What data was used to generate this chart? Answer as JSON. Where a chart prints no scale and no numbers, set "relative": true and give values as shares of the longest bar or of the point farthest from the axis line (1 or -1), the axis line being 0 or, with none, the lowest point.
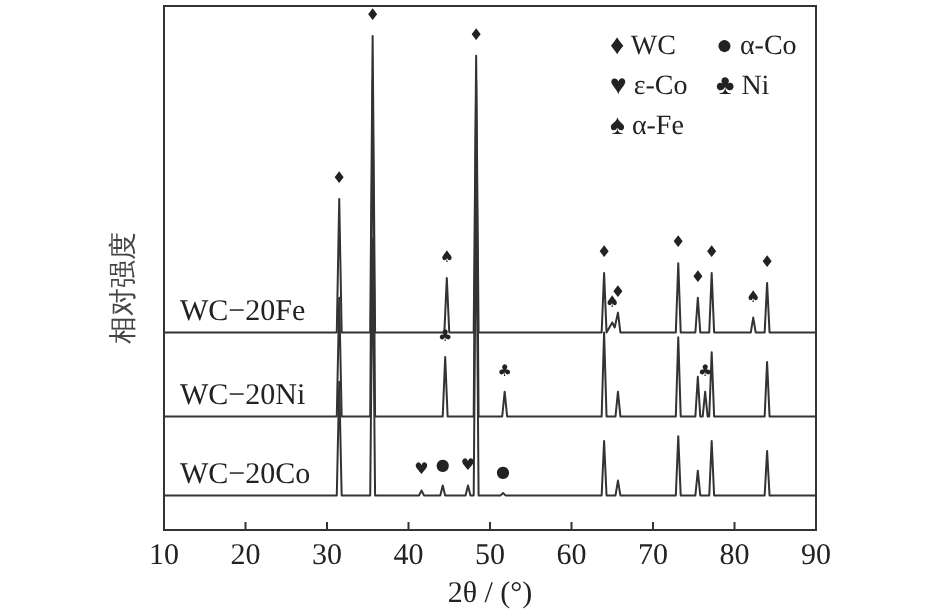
{
  "chart_data": {
    "type": "line",
    "relative": true,
    "xlabel": "2θ / (°)",
    "ylabel": "相对强度",
    "xlim": [
      10,
      90
    ],
    "xticks": [
      10,
      20,
      30,
      40,
      50,
      60,
      70,
      80,
      90
    ],
    "grid": false,
    "line_style": "solid",
    "series": [
      {
        "name": "WC−20Fe",
        "color": "#333333",
        "x": [
          10,
          31.2,
          31.5,
          31.8,
          35.3,
          35.6,
          35.9,
          44.4,
          44.7,
          45,
          48,
          48.3,
          48.6,
          63.7,
          64,
          64.3,
          65,
          65.3,
          65.7,
          66,
          72.8,
          73.1,
          73.4,
          75.2,
          75.5,
          75.8,
          76.9,
          77.2,
          77.5,
          82,
          82.3,
          82.6,
          83.7,
          84,
          84.3,
          90
        ],
        "values": [
          0.4,
          0.4,
          0.67,
          0.4,
          0.4,
          1,
          0.4,
          0.4,
          0.51,
          0.4,
          0.4,
          0.96,
          0.4,
          0.4,
          0.52,
          0.4,
          0.42,
          0.41,
          0.44,
          0.4,
          0.4,
          0.54,
          0.4,
          0.4,
          0.47,
          0.4,
          0.4,
          0.52,
          0.4,
          0.4,
          0.43,
          0.4,
          0.4,
          0.5,
          0.4,
          0.4
        ]
      },
      {
        "name": "WC−20Ni",
        "color": "#333333",
        "x": [
          10,
          31.2,
          31.5,
          31.8,
          35.3,
          35.6,
          35.9,
          44.2,
          44.5,
          44.8,
          48,
          48.3,
          48.6,
          51.5,
          51.8,
          52.1,
          63.7,
          64,
          64.3,
          65.4,
          65.7,
          66,
          72.8,
          73.1,
          73.4,
          75.2,
          75.5,
          75.8,
          76.1,
          76.4,
          76.7,
          76.9,
          77.2,
          77.5,
          83.7,
          84,
          84.3,
          90
        ],
        "values": [
          0.23,
          0.23,
          0.47,
          0.23,
          0.23,
          0.91,
          0.23,
          0.23,
          0.35,
          0.23,
          0.23,
          0.91,
          0.23,
          0.23,
          0.28,
          0.23,
          0.23,
          0.4,
          0.23,
          0.23,
          0.28,
          0.23,
          0.23,
          0.39,
          0.23,
          0.23,
          0.31,
          0.23,
          0.23,
          0.28,
          0.23,
          0.23,
          0.36,
          0.23,
          0.23,
          0.34,
          0.23,
          0.23
        ]
      },
      {
        "name": "WC−20Co",
        "color": "#333333",
        "x": [
          10,
          31.2,
          31.5,
          31.8,
          35.3,
          35.6,
          35.9,
          41.3,
          41.6,
          41.9,
          43.9,
          44.2,
          44.5,
          47,
          47.3,
          47.6,
          48,
          48.3,
          48.6,
          51.3,
          51.6,
          51.9,
          63.7,
          64,
          64.3,
          65.4,
          65.7,
          66,
          72.8,
          73.1,
          73.4,
          75.2,
          75.5,
          75.8,
          76.9,
          77.2,
          77.5,
          83.7,
          84,
          84.3,
          90
        ],
        "values": [
          0.07,
          0.07,
          0.3,
          0.07,
          0.07,
          0.59,
          0.07,
          0.07,
          0.08,
          0.07,
          0.07,
          0.09,
          0.07,
          0.07,
          0.09,
          0.07,
          0.07,
          0.71,
          0.07,
          0.07,
          0.075,
          0.07,
          0.07,
          0.18,
          0.07,
          0.07,
          0.1,
          0.07,
          0.07,
          0.19,
          0.07,
          0.07,
          0.12,
          0.07,
          0.07,
          0.18,
          0.07,
          0.07,
          0.16,
          0.07,
          0.07
        ]
      }
    ],
    "annotations": [
      "♦ WC",
      "● α-Co",
      "♥ ε-Co",
      "♣ Ni",
      "♠ α-Fe",
      {
        "text": "♦",
        "x": 31.5,
        "y": 0.67
      },
      {
        "text": "♦",
        "x": 35.6,
        "y": 1
      },
      {
        "text": "♠",
        "x": 44.7,
        "y": 0.51
      },
      {
        "text": "♦",
        "x": 48.3,
        "y": 0.96
      },
      {
        "text": "♦",
        "x": 64,
        "y": 0.52
      },
      {
        "text": "♠",
        "x": 65,
        "y": 0.42
      },
      {
        "text": "♦",
        "x": 65.7,
        "y": 0.44
      },
      {
        "text": "♦",
        "x": 73.1,
        "y": 0.54
      },
      {
        "text": "♦",
        "x": 75.5,
        "y": 0.47
      },
      {
        "text": "♦",
        "x": 77.2,
        "y": 0.52
      },
      {
        "text": "♠",
        "x": 82.3,
        "y": 0.43
      },
      {
        "text": "♦",
        "x": 84,
        "y": 0.5
      },
      {
        "text": "♣",
        "x": 44.5,
        "y": 0.35
      },
      {
        "text": "♣",
        "x": 51.8,
        "y": 0.28
      },
      {
        "text": "♣",
        "x": 76.4,
        "y": 0.28
      },
      {
        "text": "♥",
        "x": 41.6,
        "y": 0.08
      },
      {
        "text": "●",
        "x": 44.2,
        "y": 0.09
      },
      {
        "text": "♥",
        "x": 47.3,
        "y": 0.09
      },
      {
        "text": "●",
        "x": 51.6,
        "y": 0.075
      }
    ]
  }
}
